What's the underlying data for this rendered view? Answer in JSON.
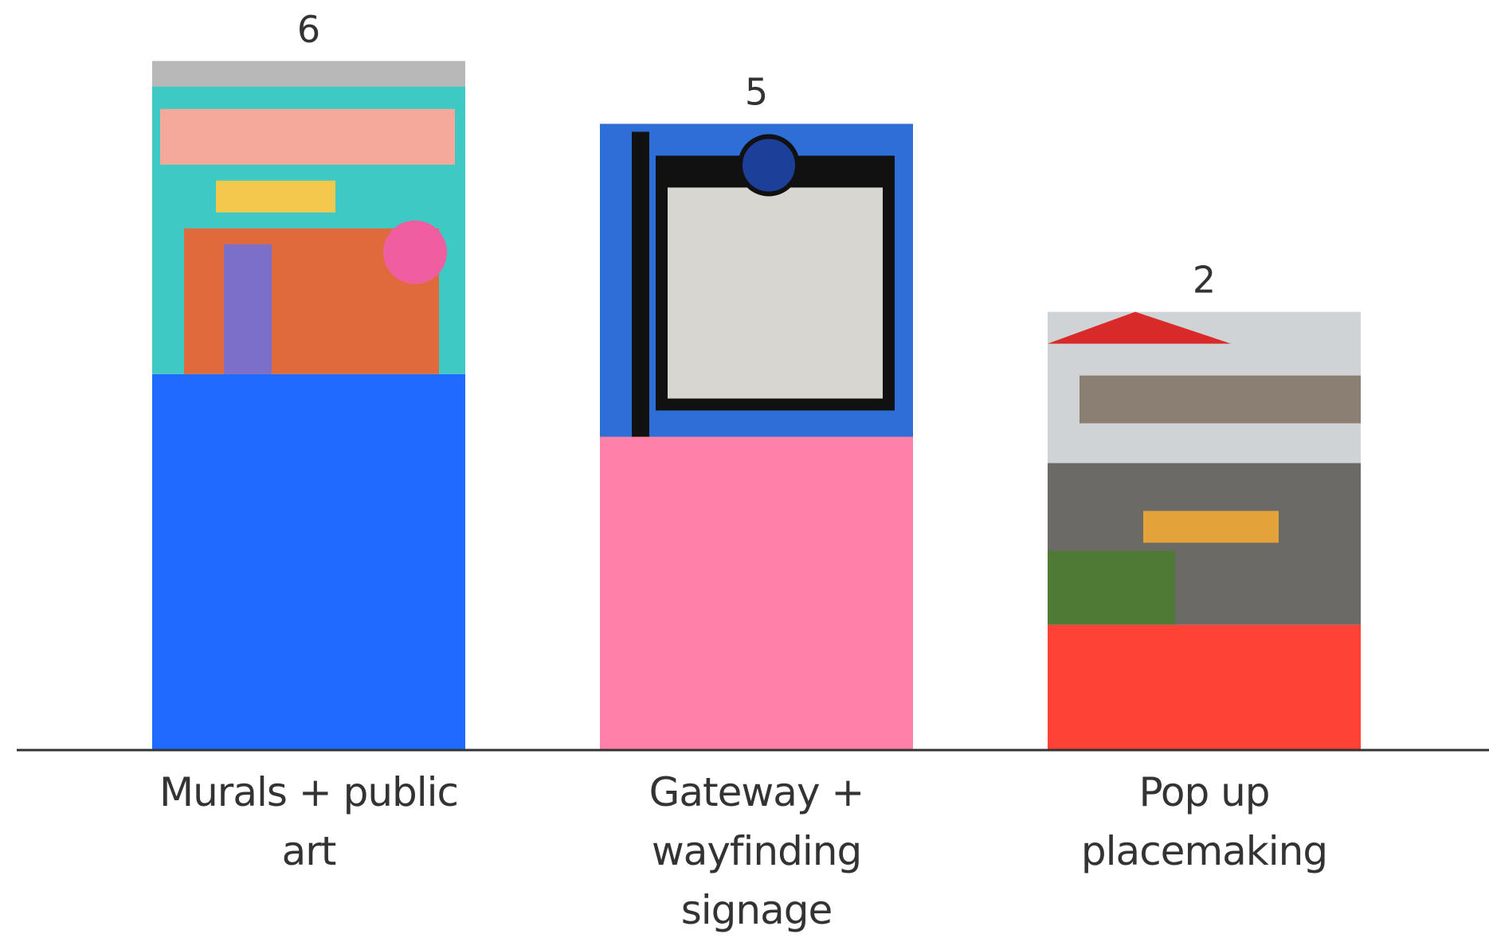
{
  "chart_data": {
    "type": "bar",
    "categories": [
      "Murals + public art",
      "Gateway + wayfinding signage",
      "Pop up placemaking"
    ],
    "values": [
      6,
      5,
      2
    ],
    "colors": [
      "#1f6bff",
      "#ff80a8",
      "#ff4136"
    ]
  }
}
